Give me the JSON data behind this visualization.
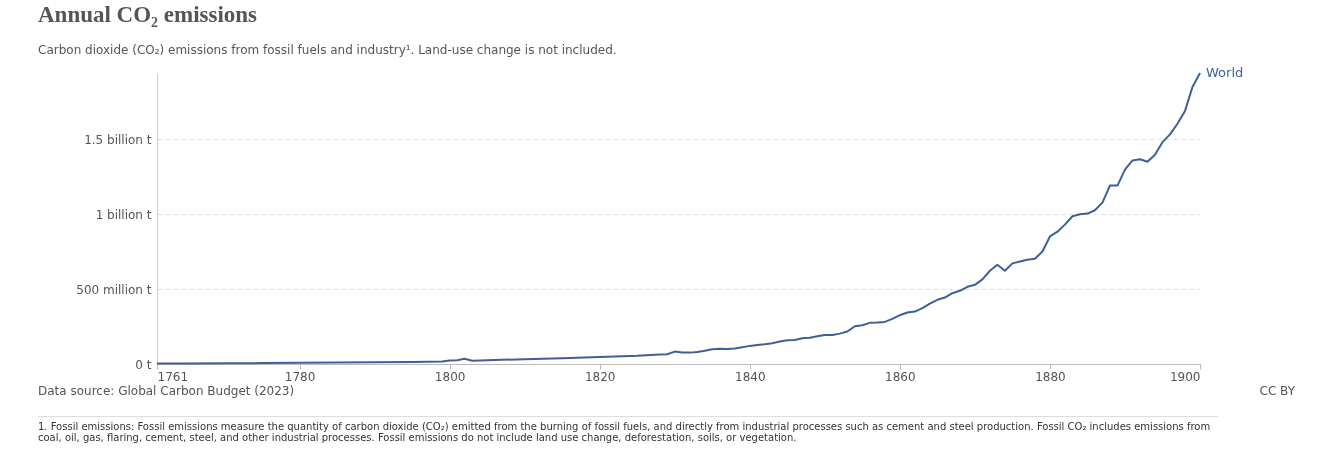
{
  "chart_data": {
    "type": "line",
    "title": "Annual CO₂ emissions",
    "subtitle": "Carbon dioxide (CO₂) emissions from fossil fuels and industry¹. Land-use change is not included.",
    "x": [
      1761,
      1765,
      1770,
      1775,
      1780,
      1785,
      1790,
      1795,
      1799,
      1800,
      1801,
      1802,
      1803,
      1805,
      1810,
      1815,
      1820,
      1825,
      1828,
      1829,
      1830,
      1831,
      1832,
      1833,
      1834,
      1835,
      1836,
      1837,
      1838,
      1839,
      1840,
      1841,
      1842,
      1843,
      1844,
      1845,
      1846,
      1847,
      1848,
      1849,
      1850,
      1851,
      1852,
      1853,
      1854,
      1855,
      1856,
      1857,
      1858,
      1859,
      1860,
      1861,
      1862,
      1863,
      1864,
      1865,
      1866,
      1867,
      1868,
      1869,
      1870,
      1871,
      1872,
      1873,
      1874,
      1875,
      1876,
      1877,
      1878,
      1879,
      1880,
      1881,
      1882,
      1883,
      1884,
      1885,
      1886,
      1887,
      1888,
      1889,
      1890,
      1891,
      1892,
      1893,
      1894,
      1895,
      1896,
      1897,
      1898,
      1899,
      1900
    ],
    "series": [
      {
        "name": "World",
        "color": "#3f5f9a",
        "values": [
          3000000,
          4000000,
          5000000,
          6000000,
          8000000,
          10000000,
          12000000,
          14000000,
          17000000,
          24000000,
          25000000,
          35000000,
          22000000,
          25000000,
          32000000,
          38000000,
          47000000,
          55000000,
          64000000,
          65000000,
          83000000,
          77000000,
          76000000,
          80000000,
          88000000,
          98000000,
          102000000,
          100000000,
          104000000,
          112000000,
          121000000,
          127000000,
          132000000,
          139000000,
          150000000,
          159000000,
          160000000,
          172000000,
          176000000,
          185000000,
          194000000,
          194000000,
          203000000,
          217000000,
          252000000,
          259000000,
          275000000,
          277000000,
          281000000,
          301000000,
          326000000,
          344000000,
          350000000,
          373000000,
          404000000,
          429000000,
          444000000,
          473000000,
          489000000,
          516000000,
          529000000,
          565000000,
          623000000,
          663000000,
          623000000,
          672000000,
          685000000,
          697000000,
          703000000,
          752000000,
          852000000,
          884000000,
          931000000,
          987000000,
          1000000000,
          1005000000,
          1027000000,
          1078000000,
          1192000000,
          1192000000,
          1299000000,
          1360000000,
          1368000000,
          1351000000,
          1398000000,
          1482000000,
          1534000000,
          1605000000,
          1690000000,
          1851000000,
          1944000000
        ]
      }
    ],
    "xlim": [
      1761,
      1900
    ],
    "xticks": [
      1761,
      1780,
      1800,
      1820,
      1840,
      1860,
      1880,
      1900
    ],
    "ylim": [
      0,
      1944000000
    ],
    "yticks": [
      {
        "value": 0,
        "label": "0 t"
      },
      {
        "value": 500000000,
        "label": "500 million t"
      },
      {
        "value": 1000000000,
        "label": "1 billion t"
      },
      {
        "value": 1500000000,
        "label": "1.5 billion t"
      }
    ],
    "grid": "y",
    "line_style": "solid",
    "annotations": [
      "Data source: Global Carbon Budget (2023)",
      "CC BY",
      "1. Fossil emissions: Fossil emissions measure the quantity of carbon dioxide (CO₂) emitted from the burning of fossil fuels, and directly from industrial processes such as cement and steel production. Fossil CO₂ includes emissions from coal, oil, gas, flaring, cement, steel, and other industrial processes. Fossil emissions do not include land use change, deforestation, soils, or vegetation."
    ]
  }
}
